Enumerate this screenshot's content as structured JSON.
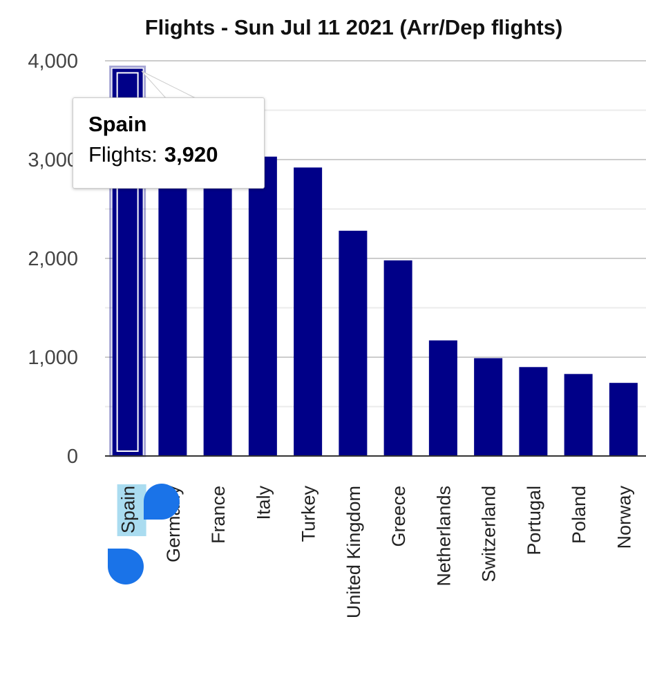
{
  "chart_data": {
    "type": "bar",
    "title": "Flights - Sun Jul 11 2021 (Arr/Dep flights)",
    "categories": [
      "Spain",
      "Germany",
      "France",
      "Italy",
      "Turkey",
      "United Kingdom",
      "Greece",
      "Netherlands",
      "Switzerland",
      "Portugal",
      "Poland",
      "Norway"
    ],
    "series": [
      {
        "values": [
          3920,
          2950,
          2950,
          3030,
          2920,
          2280,
          1980,
          1170,
          990,
          900,
          830,
          740
        ]
      }
    ],
    "ylim": [
      0,
      4000
    ],
    "yticks": [
      "0",
      "1,000",
      "2,000",
      "3,000",
      "4,000"
    ],
    "ytick_values": [
      0,
      1000,
      2000,
      3000,
      4000
    ],
    "grid": true,
    "legend": "none",
    "bar_color": "#000088",
    "highlighted_category": "Spain",
    "label_selection_color": "#aadcf0"
  },
  "tooltip": {
    "name": "Spain",
    "label": "Flights:",
    "value": "3,920"
  },
  "selection_handles": {
    "color": "#1a73e8",
    "icons": [
      "selection-handle-top-icon",
      "selection-handle-bottom-icon"
    ]
  }
}
